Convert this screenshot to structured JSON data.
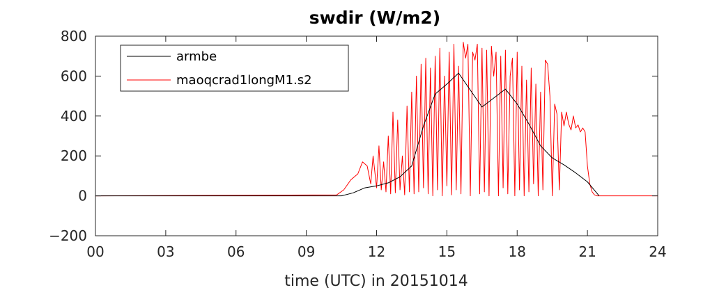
{
  "chart_data": {
    "type": "line",
    "title": "swdir  (W/m2)",
    "xlabel": "time (UTC) in 20151014",
    "ylabel": "",
    "xlim": [
      0,
      24
    ],
    "ylim": [
      -200,
      800
    ],
    "x_ticks": [
      0,
      3,
      6,
      9,
      12,
      15,
      18,
      21,
      24
    ],
    "x_tick_labels": [
      "00",
      "03",
      "06",
      "09",
      "12",
      "15",
      "18",
      "21",
      "24"
    ],
    "y_ticks": [
      -200,
      0,
      200,
      400,
      600,
      800
    ],
    "y_tick_labels": [
      "−200",
      "0",
      "200",
      "400",
      "600",
      "800"
    ],
    "grid": false,
    "legend_position": "top-left",
    "series": [
      {
        "name": "armbe",
        "color": "#000000",
        "x": [
          0,
          10.5,
          11,
          11.5,
          12,
          12.5,
          13,
          13.5,
          14,
          14.5,
          15,
          15.5,
          16,
          16.5,
          17,
          17.5,
          18,
          18.5,
          19,
          19.5,
          20,
          20.5,
          21,
          21.5
        ],
        "y": [
          0,
          0,
          15,
          40,
          50,
          65,
          95,
          150,
          350,
          510,
          560,
          615,
          530,
          445,
          490,
          535,
          460,
          360,
          250,
          190,
          155,
          115,
          70,
          0
        ]
      },
      {
        "name": "maoqcrad1longM1.s2",
        "color": "#ff0000",
        "x": [
          0,
          10.3,
          10.6,
          10.9,
          11.2,
          11.4,
          11.6,
          11.75,
          11.85,
          12.0,
          12.1,
          12.2,
          12.3,
          12.4,
          12.5,
          12.6,
          12.7,
          12.8,
          12.9,
          13.0,
          13.1,
          13.2,
          13.3,
          13.4,
          13.5,
          13.6,
          13.7,
          13.8,
          13.9,
          14.0,
          14.1,
          14.2,
          14.3,
          14.4,
          14.5,
          14.6,
          14.7,
          14.8,
          14.9,
          15.0,
          15.1,
          15.2,
          15.3,
          15.4,
          15.5,
          15.6,
          15.7,
          15.8,
          15.9,
          16.0,
          16.1,
          16.2,
          16.3,
          16.4,
          16.5,
          16.6,
          16.7,
          16.8,
          16.9,
          17.0,
          17.1,
          17.2,
          17.3,
          17.4,
          17.5,
          17.6,
          17.7,
          17.8,
          17.9,
          18.0,
          18.1,
          18.2,
          18.3,
          18.4,
          18.5,
          18.6,
          18.7,
          18.8,
          18.9,
          19.0,
          19.1,
          19.2,
          19.3,
          19.4,
          19.5,
          19.6,
          19.7,
          19.8,
          19.9,
          20.0,
          20.1,
          20.2,
          20.3,
          20.4,
          20.5,
          20.6,
          20.7,
          20.8,
          20.9,
          21.0,
          21.1,
          21.2,
          21.3,
          21.4,
          21.6,
          22.0,
          24
        ],
        "y": [
          0,
          5,
          30,
          80,
          110,
          170,
          150,
          60,
          200,
          40,
          250,
          30,
          170,
          20,
          300,
          10,
          420,
          15,
          380,
          30,
          200,
          5,
          450,
          20,
          520,
          10,
          600,
          20,
          660,
          40,
          690,
          10,
          640,
          0,
          700,
          30,
          740,
          0,
          600,
          50,
          720,
          5,
          760,
          30,
          650,
          10,
          770,
          690,
          760,
          0,
          720,
          680,
          760,
          10,
          740,
          20,
          730,
          0,
          750,
          600,
          720,
          0,
          700,
          40,
          730,
          10,
          600,
          690,
          0,
          720,
          30,
          650,
          0,
          580,
          20,
          640,
          60,
          560,
          0,
          520,
          30,
          680,
          660,
          500,
          0,
          460,
          410,
          30,
          420,
          350,
          420,
          360,
          330,
          400,
          340,
          355,
          320,
          340,
          320,
          150,
          60,
          20,
          5,
          0,
          0,
          0,
          0
        ]
      }
    ]
  }
}
